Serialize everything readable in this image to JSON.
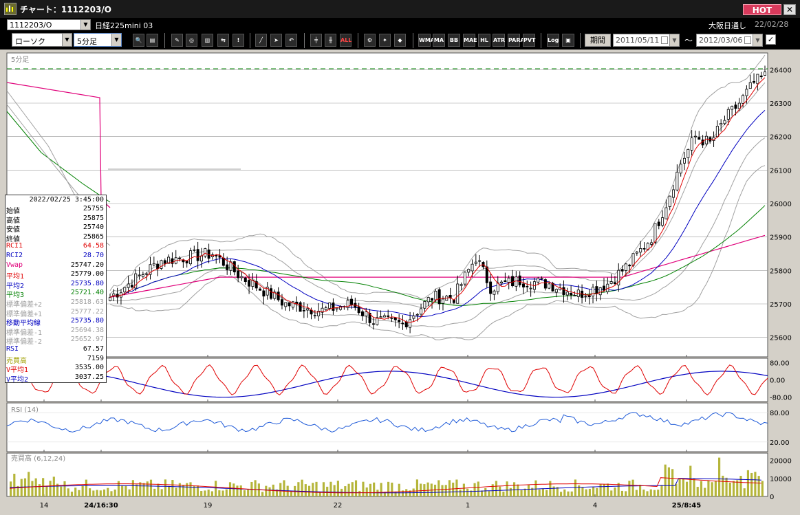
{
  "window": {
    "title": "チャート：1112203/O",
    "hot_label": "HOT",
    "close_label": "✕"
  },
  "symbol_bar": {
    "code": "1112203/O",
    "instrument": "日経225mini 03",
    "market": "大阪日通し",
    "date": "22/02/28"
  },
  "toolbar": {
    "chart_type": "ローソク",
    "interval": "5分足",
    "period_label": "期間",
    "start_date": "2011/05/11",
    "end_date": "2012/03/06",
    "range_sep": "～",
    "check_mark": "✓",
    "buttons": [
      "zoom-icon",
      "layout-icon",
      "drawing-icon",
      "search-chart-icon",
      "bar-chart-icon",
      "compare-icon",
      "alert-icon",
      "pen-icon",
      "cursor-icon",
      "undo-icon",
      "candle-a-icon",
      "candle-b-icon",
      "ALL",
      "settings-icon",
      "wrench-icon",
      "palette-icon",
      "WMA",
      "MA",
      "BB",
      "MAE",
      "HL",
      "ATR",
      "PARA",
      "PVT",
      "Log",
      "print-icon"
    ],
    "button_labels": {
      "all": "ALL",
      "wma": "WMA",
      "ma": "MA",
      "bb": "BB",
      "mae": "MAE",
      "hl": "HL",
      "atr": "ATR",
      "para": "PARA",
      "pvt": "PVT",
      "log": "Log"
    }
  },
  "info_panel": {
    "timestamp": "2022/02/25 3:45:00",
    "rows": [
      {
        "label": "始値",
        "value": "25755",
        "color": "#000000"
      },
      {
        "label": "高値",
        "value": "25875",
        "color": "#000000"
      },
      {
        "label": "安値",
        "value": "25740",
        "color": "#000000"
      },
      {
        "label": "終値",
        "value": "25865",
        "color": "#000000"
      },
      {
        "label": "RCI1",
        "value": "64.58",
        "color": "#e00000"
      },
      {
        "label": "RCI2",
        "value": "28.70",
        "color": "#0000c0"
      },
      {
        "label": "Vwap",
        "value": "25747.20",
        "color": "#e0007a"
      },
      {
        "label": "平均1",
        "value": "25779.00",
        "color": "#e00000"
      },
      {
        "label": "平均2",
        "value": "25735.80",
        "color": "#0000c0"
      },
      {
        "label": "平均3",
        "value": "25721.40",
        "color": "#008000"
      },
      {
        "label": "標準偏差+2",
        "value": "25818.63",
        "color": "#a0a0a0"
      },
      {
        "label": "標準偏差+1",
        "value": "25777.22",
        "color": "#a0a0a0"
      },
      {
        "label": "移動平均線",
        "value": "25735.80",
        "color": "#0000c0"
      },
      {
        "label": "標準偏差-1",
        "value": "25694.38",
        "color": "#a0a0a0"
      },
      {
        "label": "標準偏差-2",
        "value": "25652.97",
        "color": "#a0a0a0"
      },
      {
        "label": "RSI",
        "value": "67.57",
        "color": "#0000c0"
      },
      {
        "label": "売買高",
        "value": "7159",
        "color": "#a0a000"
      },
      {
        "label": "V平均1",
        "value": "3535.00",
        "color": "#e00000"
      },
      {
        "label": "V平均2",
        "value": "3037.25",
        "color": "#0000c0"
      }
    ]
  },
  "panels": {
    "price_label": "5分足",
    "rsi_label": "RSI (14)",
    "volume_label": "売買高 (6,12,24)",
    "price_ticks": [
      "26400",
      "26300",
      "26200",
      "26100",
      "26000",
      "25900",
      "25800",
      "25700",
      "25600"
    ],
    "rci_ticks": [
      "80.00",
      "0.00",
      "-80.00"
    ],
    "rsi_ticks": [
      "80.00",
      "20.00"
    ],
    "volume_ticks": [
      "20000",
      "10000",
      "0"
    ],
    "x_labels": [
      "14",
      "24/16:30",
      "19",
      "22",
      "1",
      "4",
      "25/8:45"
    ]
  },
  "colors": {
    "candle_up": "#ffffff",
    "candle_down": "#000000",
    "ma1": "#e00000",
    "ma2": "#0000c0",
    "ma3": "#008000",
    "vwap": "#e0007a",
    "band": "#a0a0a0",
    "rsi": "#1e5ad8",
    "volume": "#b5b53a",
    "dashed_line": "#008000"
  }
}
